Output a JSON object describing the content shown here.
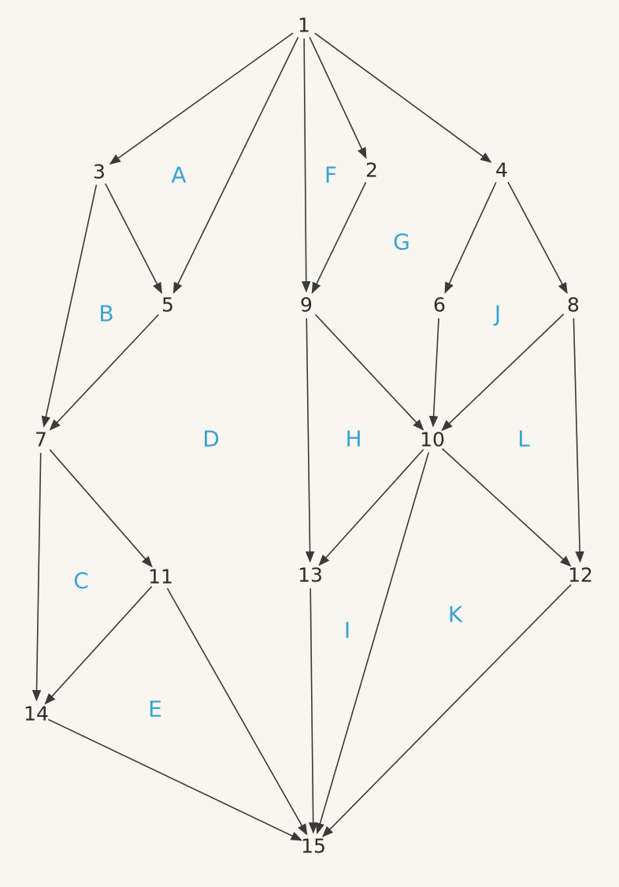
{
  "colors": {
    "background": "#f8f6ee",
    "edge": "#3a3a3a",
    "node_text": "#2b2b2b",
    "face_text": "#3aa3d8"
  },
  "nodes": [
    {
      "id": "1"
    },
    {
      "id": "2"
    },
    {
      "id": "3"
    },
    {
      "id": "4"
    },
    {
      "id": "5"
    },
    {
      "id": "6"
    },
    {
      "id": "7"
    },
    {
      "id": "8"
    },
    {
      "id": "9"
    },
    {
      "id": "10"
    },
    {
      "id": "11"
    },
    {
      "id": "12"
    },
    {
      "id": "13"
    },
    {
      "id": "14"
    },
    {
      "id": "15"
    }
  ],
  "edges": [
    [
      "1",
      "3"
    ],
    [
      "1",
      "5"
    ],
    [
      "1",
      "9"
    ],
    [
      "1",
      "2"
    ],
    [
      "1",
      "4"
    ],
    [
      "3",
      "5"
    ],
    [
      "3",
      "7"
    ],
    [
      "2",
      "9"
    ],
    [
      "4",
      "6"
    ],
    [
      "4",
      "8"
    ],
    [
      "5",
      "7"
    ],
    [
      "9",
      "10"
    ],
    [
      "9",
      "13"
    ],
    [
      "6",
      "10"
    ],
    [
      "8",
      "10"
    ],
    [
      "8",
      "12"
    ],
    [
      "7",
      "11"
    ],
    [
      "7",
      "14"
    ],
    [
      "10",
      "13"
    ],
    [
      "10",
      "15"
    ],
    [
      "10",
      "12"
    ],
    [
      "11",
      "14"
    ],
    [
      "11",
      "15"
    ],
    [
      "13",
      "15"
    ],
    [
      "12",
      "15"
    ],
    [
      "14",
      "15"
    ]
  ],
  "faces": [
    "A",
    "B",
    "C",
    "D",
    "E",
    "F",
    "G",
    "H",
    "I",
    "J",
    "K",
    "L"
  ]
}
